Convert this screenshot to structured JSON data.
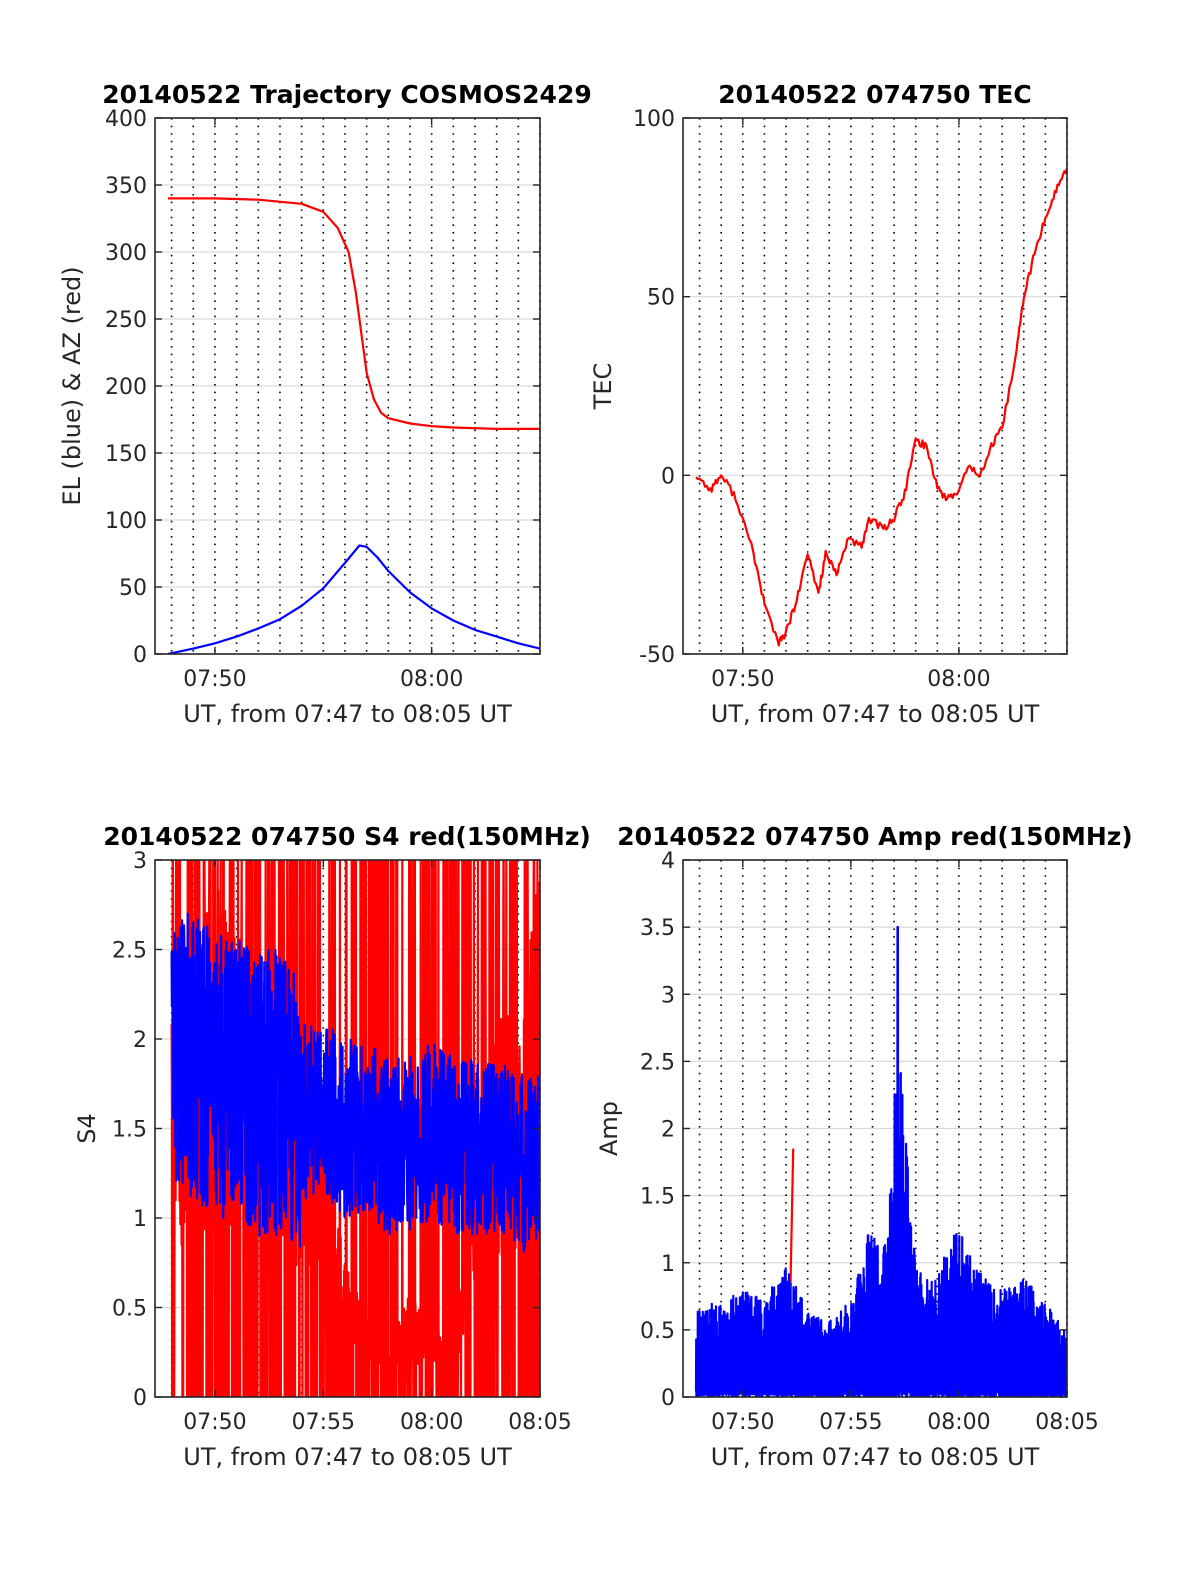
{
  "colors": {
    "red": "#ff0000",
    "blue": "#0000ff",
    "grid": "#d9d9d9",
    "vgrid": "#000000",
    "axis": "#262626"
  },
  "chart_data": [
    {
      "type": "line",
      "title": "20140522 Trajectory COSMOS2429",
      "xlabel": "UT, from 07:47 to 08:05 UT",
      "ylabel": "EL (blue) & AZ (red)",
      "xlim": [
        "07:47:14",
        "08:05:00"
      ],
      "ylim": [
        0,
        400
      ],
      "yticks": [
        "0",
        "50",
        "100",
        "150",
        "200",
        "250",
        "300",
        "350",
        "400"
      ],
      "xticks": [
        "07:50",
        "08:00"
      ],
      "grid": true,
      "series": [
        {
          "color": "red",
          "x": [
            "07:47:50",
            "07:50:00",
            "07:52:00",
            "07:54:00",
            "07:55:00",
            "07:55:40",
            "07:56:10",
            "07:56:30",
            "07:56:45",
            "07:57:00",
            "07:57:20",
            "07:57:40",
            "07:58:00",
            "07:59:00",
            "08:00:00",
            "08:01:00",
            "08:03:00",
            "08:05:00"
          ],
          "y": [
            340,
            340,
            339,
            336,
            330,
            318,
            300,
            270,
            240,
            210,
            190,
            180,
            176,
            172,
            170,
            169,
            168,
            168
          ]
        },
        {
          "color": "blue",
          "x": [
            "07:47:50",
            "07:49:00",
            "07:50:00",
            "07:51:00",
            "07:52:00",
            "07:53:00",
            "07:54:00",
            "07:55:00",
            "07:56:00",
            "07:56:40",
            "07:57:00",
            "07:57:30",
            "07:58:00",
            "07:59:00",
            "08:00:00",
            "08:01:00",
            "08:02:00",
            "08:03:00",
            "08:04:00",
            "08:05:00"
          ],
          "y": [
            0,
            4,
            8,
            13,
            19,
            26,
            36,
            49,
            68,
            81,
            80,
            72,
            62,
            46,
            34,
            25,
            18,
            13,
            8,
            4
          ]
        }
      ]
    },
    {
      "type": "line",
      "title": "20140522 074750 TEC",
      "xlabel": "UT, from 07:47 to 08:05 UT",
      "ylabel": "TEC",
      "xlim": [
        "07:47:14",
        "08:05:00"
      ],
      "ylim": [
        -50,
        100
      ],
      "yticks": [
        "-50",
        "0",
        "50",
        "100"
      ],
      "xticks": [
        "07:50",
        "08:00"
      ],
      "grid": true,
      "series": [
        {
          "color": "red",
          "x": [
            "07:47:50",
            "07:48:30",
            "07:49:00",
            "07:49:40",
            "07:50:30",
            "07:51:00",
            "07:51:40",
            "07:52:00",
            "07:52:30",
            "07:53:00",
            "07:53:30",
            "07:53:50",
            "07:54:20",
            "07:54:50",
            "07:55:30",
            "07:55:50",
            "07:56:30",
            "07:57:00",
            "07:57:30",
            "07:58:00",
            "07:58:30",
            "07:59:00",
            "07:59:20",
            "07:59:50",
            "08:00:30",
            "08:01:00",
            "08:01:30",
            "08:02:00",
            "08:02:40",
            "08:03:00",
            "08:03:30",
            "08:04:00",
            "08:04:30",
            "08:05:00"
          ],
          "y": [
            0,
            -4,
            0,
            -6,
            -22,
            -36,
            -47,
            -44,
            -35,
            -22,
            -33,
            -22,
            -28,
            -18,
            -20,
            -12,
            -15,
            -12,
            -5,
            10,
            8,
            -3,
            -6,
            -6,
            3,
            0,
            8,
            13,
            35,
            50,
            62,
            72,
            80,
            86
          ]
        }
      ]
    },
    {
      "type": "line",
      "title": "20140522 074750 S4 red(150MHz)",
      "xlabel": "UT, from 07:47 to 08:05 UT",
      "ylabel": "S4",
      "xlim": [
        "07:47:14",
        "08:05:00"
      ],
      "ylim": [
        0,
        3
      ],
      "yticks": [
        "0",
        "0.5",
        "1",
        "1.5",
        "2",
        "2.5",
        "3"
      ],
      "xticks": [
        "07:50",
        "07:55",
        "08:00",
        "08:05"
      ],
      "grid": true,
      "series": [
        {
          "color": "red",
          "x": [
            "07:48",
            "07:49",
            "07:50",
            "07:51",
            "07:52",
            "07:53",
            "07:54",
            "07:55",
            "07:56",
            "07:57",
            "07:58",
            "07:59",
            "08:00",
            "08:01",
            "08:02",
            "08:03",
            "08:04",
            "08:05"
          ],
          "y": [
            1.6,
            1.8,
            1.9,
            1.8,
            1.6,
            1.5,
            1.3,
            1.1,
            0.5,
            0.3,
            0.2,
            0.4,
            0.3,
            0.2,
            1.0,
            1.6,
            1.4,
            2.0
          ]
        },
        {
          "color": "blue",
          "x": [
            "07:48",
            "07:49",
            "07:50",
            "07:51",
            "07:52",
            "07:53",
            "07:54",
            "07:55",
            "07:56",
            "07:57",
            "07:58",
            "07:59",
            "08:00",
            "08:01",
            "08:02",
            "08:03",
            "08:04",
            "08:05"
          ],
          "y": [
            2.0,
            1.9,
            1.8,
            1.8,
            1.7,
            1.7,
            1.6,
            1.6,
            1.5,
            1.5,
            1.4,
            1.4,
            1.5,
            1.4,
            1.4,
            1.4,
            1.3,
            1.3
          ]
        }
      ]
    },
    {
      "type": "line",
      "title": "20140522 074750 Amp red(150MHz)",
      "xlabel": "UT, from 07:47 to 08:05 UT",
      "ylabel": "Amp",
      "xlim": [
        "07:47:14",
        "08:05:00"
      ],
      "ylim": [
        0,
        4
      ],
      "yticks": [
        "0",
        "0.5",
        "1",
        "1.5",
        "2",
        "2.5",
        "3",
        "3.5",
        "4"
      ],
      "xticks": [
        "07:50",
        "07:55",
        "08:00",
        "08:05"
      ],
      "grid": true,
      "series": [
        {
          "color": "red",
          "x": [
            "07:52:10",
            "07:52:20"
          ],
          "y": [
            0.5,
            1.85
          ]
        },
        {
          "color": "blue",
          "x": [
            "07:47:50",
            "07:50:00",
            "07:51:00",
            "07:52:00",
            "07:53:00",
            "07:54:00",
            "07:55:00",
            "07:55:50",
            "07:56:40",
            "07:57:10",
            "07:58:00",
            "07:59:00",
            "07:59:50",
            "08:01:00",
            "08:02:00",
            "08:03:00",
            "08:04:00",
            "08:05:00"
          ],
          "y": [
            0.8,
            1.0,
            0.9,
            1.25,
            0.8,
            0.7,
            0.9,
            1.55,
            1.4,
            3.5,
            1.2,
            1.1,
            1.65,
            1.2,
            1.0,
            1.1,
            0.9,
            0.6
          ]
        }
      ]
    }
  ]
}
